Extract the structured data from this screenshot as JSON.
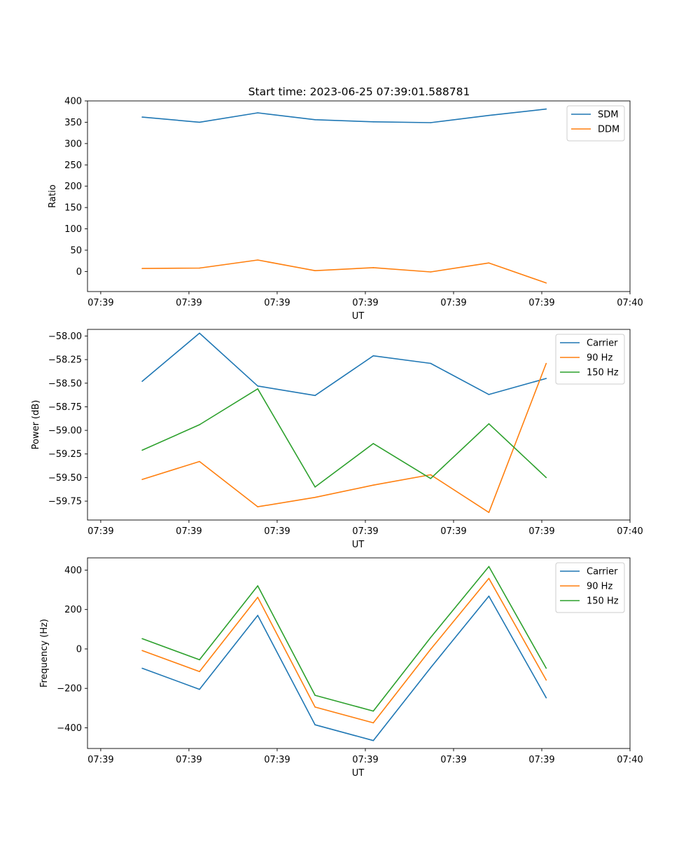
{
  "title": "Start time: 2023-06-25 07:39:01.588781",
  "colors": {
    "blue": "#1f77b4",
    "orange": "#ff7f0e",
    "green": "#2ca02c"
  },
  "chart_data": [
    {
      "type": "line",
      "xlabel": "UT",
      "ylabel": "Ratio",
      "x_tick_labels": [
        "07:39",
        "07:39",
        "07:39",
        "07:39",
        "07:39",
        "07:39",
        "07:40"
      ],
      "x_range": [
        -0.15,
        6.0
      ],
      "ylim": [
        -47,
        400
      ],
      "y_ticks": [
        0,
        50,
        100,
        150,
        200,
        250,
        300,
        350,
        400
      ],
      "y_tick_labels": [
        "0",
        "50",
        "100",
        "150",
        "200",
        "250",
        "300",
        "350",
        "400"
      ],
      "legend": "top-right",
      "x": [
        0.47,
        1.12,
        1.78,
        2.43,
        3.09,
        3.74,
        4.4,
        5.05
      ],
      "series": [
        {
          "name": "SDM",
          "color": "#1f77b4",
          "values": [
            362,
            350,
            372,
            356,
            351,
            349,
            366,
            381
          ]
        },
        {
          "name": "DDM",
          "color": "#ff7f0e",
          "values": [
            7,
            8,
            27,
            2,
            9,
            -1,
            20,
            -27
          ]
        }
      ]
    },
    {
      "type": "line",
      "xlabel": "UT",
      "ylabel": "Power (dB)",
      "x_tick_labels": [
        "07:39",
        "07:39",
        "07:39",
        "07:39",
        "07:39",
        "07:39",
        "07:40"
      ],
      "x_range": [
        -0.15,
        6.0
      ],
      "ylim": [
        -59.95,
        -57.93
      ],
      "y_ticks": [
        -59.75,
        -59.5,
        -59.25,
        -59.0,
        -58.75,
        -58.5,
        -58.25,
        -58.0
      ],
      "y_tick_labels": [
        "−59.75",
        "−59.50",
        "−59.25",
        "−59.00",
        "−58.75",
        "−58.50",
        "−58.25",
        "−58.00"
      ],
      "legend": "top-right",
      "x": [
        0.47,
        1.12,
        1.78,
        2.43,
        3.09,
        3.74,
        4.4,
        5.05
      ],
      "series": [
        {
          "name": "Carrier",
          "color": "#1f77b4",
          "values": [
            -58.48,
            -57.97,
            -58.53,
            -58.63,
            -58.21,
            -58.29,
            -58.62,
            -58.45
          ]
        },
        {
          "name": "90 Hz",
          "color": "#ff7f0e",
          "values": [
            -59.52,
            -59.33,
            -59.81,
            -59.71,
            -59.58,
            -59.47,
            -59.87,
            -58.29
          ]
        },
        {
          "name": "150 Hz",
          "color": "#2ca02c",
          "values": [
            -59.21,
            -58.94,
            -58.56,
            -59.6,
            -59.14,
            -59.51,
            -58.93,
            -59.5
          ]
        }
      ]
    },
    {
      "type": "line",
      "xlabel": "UT",
      "ylabel": "Frequency (Hz)",
      "x_tick_labels": [
        "07:39",
        "07:39",
        "07:39",
        "07:39",
        "07:39",
        "07:39",
        "07:40"
      ],
      "x_range": [
        -0.15,
        6.0
      ],
      "ylim": [
        -505,
        462
      ],
      "y_ticks": [
        -400,
        -200,
        0,
        200,
        400
      ],
      "y_tick_labels": [
        "−400",
        "−200",
        "0",
        "200",
        "400"
      ],
      "legend": "top-right",
      "x": [
        0.47,
        1.12,
        1.78,
        2.43,
        3.09,
        3.74,
        4.4,
        5.05
      ],
      "series": [
        {
          "name": "Carrier",
          "color": "#1f77b4",
          "values": [
            -98,
            -205,
            170,
            -385,
            -465,
            -95,
            268,
            -248
          ]
        },
        {
          "name": "90 Hz",
          "color": "#ff7f0e",
          "values": [
            -8,
            -115,
            262,
            -295,
            -375,
            -2,
            358,
            -158
          ]
        },
        {
          "name": "150 Hz",
          "color": "#2ca02c",
          "values": [
            52,
            -55,
            320,
            -235,
            -315,
            58,
            418,
            -98
          ]
        }
      ]
    }
  ]
}
